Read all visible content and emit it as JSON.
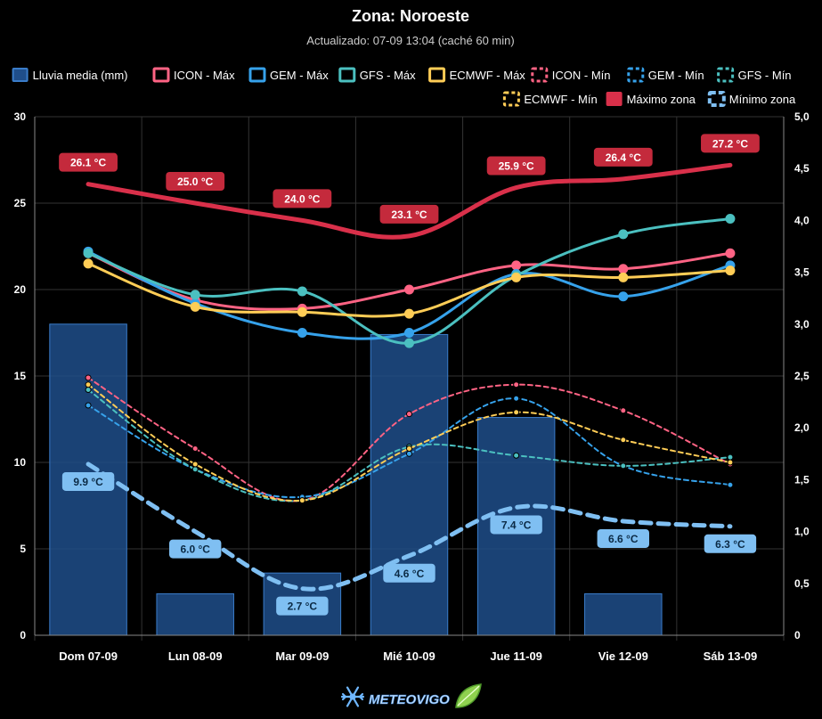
{
  "chart_data": {
    "type": "line",
    "title": "Zona: Noroeste",
    "subtitle": "Actualizado: 07-09 13:04 (caché 60 min)",
    "categories": [
      "Dom 07-09",
      "Lun 08-09",
      "Mar 09-09",
      "Mié 10-09",
      "Jue 11-09",
      "Vie 12-09",
      "Sáb 13-09"
    ],
    "y_left": {
      "min": 0,
      "max": 30,
      "ticks": [
        "0",
        "5",
        "10",
        "15",
        "20",
        "25",
        "30"
      ]
    },
    "y_right": {
      "min": 0,
      "max": 5,
      "ticks": [
        "0",
        "0,5",
        "1,0",
        "1,5",
        "2,0",
        "2,5",
        "3,0",
        "3,5",
        "4,0",
        "4,5",
        "5,0"
      ]
    },
    "grid": true,
    "legend_position": "top",
    "rain": {
      "name": "Lluvia media (mm)",
      "color": "#1f4e8a",
      "border": "#3a7cc9",
      "values": [
        3.0,
        0.4,
        0.6,
        2.9,
        2.1,
        0.4,
        0
      ]
    },
    "series": [
      {
        "name": "ICON - Máx",
        "color": "#ff6384",
        "dashed": false,
        "values": [
          22.1,
          19.4,
          18.9,
          20.0,
          21.4,
          21.2,
          22.1
        ]
      },
      {
        "name": "GEM - Máx",
        "color": "#36a2eb",
        "dashed": false,
        "values": [
          22.2,
          19.2,
          17.5,
          17.5,
          20.9,
          19.6,
          21.4
        ]
      },
      {
        "name": "GFS - Máx",
        "color": "#4bc0c0",
        "dashed": false,
        "values": [
          22.1,
          19.7,
          19.9,
          16.9,
          20.8,
          23.2,
          24.1
        ]
      },
      {
        "name": "ECMWF - Máx",
        "color": "#ffcd56",
        "dashed": false,
        "values": [
          21.5,
          19.0,
          18.7,
          18.6,
          20.7,
          20.7,
          21.1
        ]
      },
      {
        "name": "ICON - Mín",
        "color": "#ff6384",
        "dashed": true,
        "values": [
          14.9,
          10.8,
          7.8,
          12.8,
          14.5,
          13.0,
          9.9
        ]
      },
      {
        "name": "GEM - Mín",
        "color": "#36a2eb",
        "dashed": true,
        "values": [
          13.3,
          9.6,
          8.0,
          10.5,
          13.7,
          9.8,
          8.7
        ]
      },
      {
        "name": "GFS - Mín",
        "color": "#4bc0c0",
        "dashed": true,
        "values": [
          14.2,
          9.6,
          7.8,
          10.9,
          10.4,
          9.8,
          10.3
        ]
      },
      {
        "name": "ECMWF - Mín",
        "color": "#ffcd56",
        "dashed": true,
        "values": [
          14.5,
          9.9,
          7.8,
          10.8,
          12.9,
          11.3,
          10.0
        ]
      },
      {
        "name": "Máximo zona",
        "color": "#d9304a",
        "dashed": false,
        "thick": true,
        "values": [
          26.1,
          25.0,
          24.0,
          23.1,
          25.9,
          26.4,
          27.2
        ],
        "labels": [
          "26.1 °C",
          "25.0 °C",
          "24.0 °C",
          "23.1 °C",
          "25.9 °C",
          "26.4 °C",
          "27.2 °C"
        ],
        "label_bg": "#c42a3c"
      },
      {
        "name": "Mínimo zona",
        "color": "#7fbff2",
        "dashed": true,
        "thick": true,
        "values": [
          9.9,
          6.0,
          2.7,
          4.6,
          7.4,
          6.6,
          6.3
        ],
        "labels": [
          "9.9 °C",
          "6.0 °C",
          "2.7 °C",
          "4.6 °C",
          "7.4 °C",
          "6.6 °C",
          "6.3 °C"
        ],
        "label_bg": "#7fbff2"
      }
    ],
    "legend_order": [
      "Lluvia media (mm)",
      "ICON - Máx",
      "GEM - Máx",
      "GFS - Máx",
      "ECMWF - Máx",
      "ICON - Mín",
      "GEM - Mín",
      "GFS - Mín",
      "ECMWF - Mín",
      "Máximo zona",
      "Mínimo zona"
    ]
  },
  "footer": {
    "logo_text": "METEOVIGO"
  }
}
